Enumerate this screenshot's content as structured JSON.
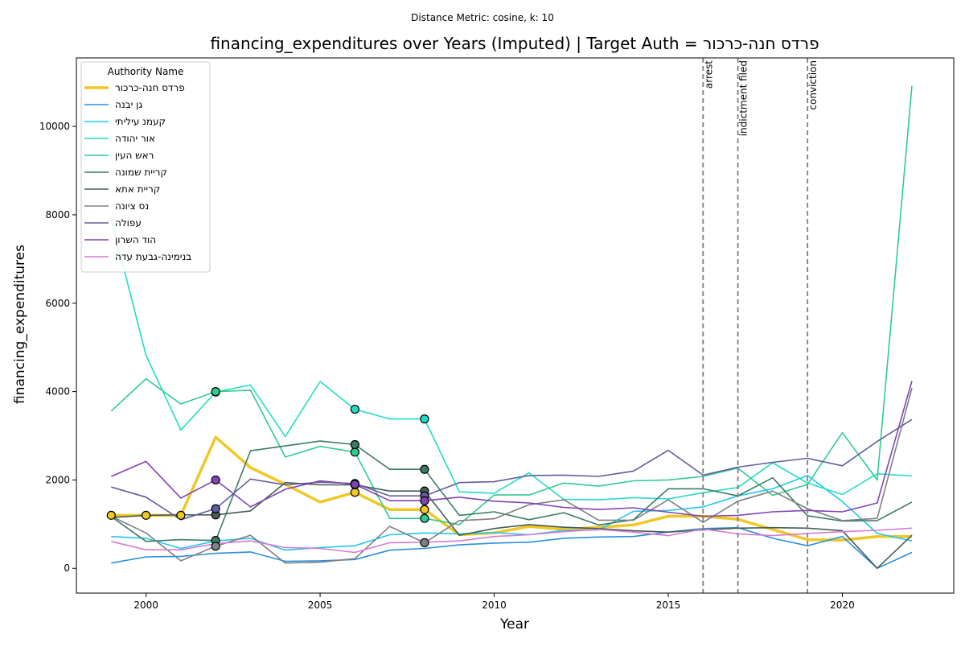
{
  "chart_data": {
    "type": "line",
    "suptitle": "Distance Metric: cosine, k: 10",
    "title": "financing_expenditures over Years (Imputed) | Target Auth = פרדס חנה-כרכור",
    "xlabel": "Year",
    "ylabel": "financing_expenditures",
    "xlim": [
      1998.0,
      2023.2
    ],
    "ylim": [
      -560,
      11550
    ],
    "x_ticks": [
      2000,
      2005,
      2010,
      2015,
      2020
    ],
    "y_ticks": [
      0,
      2000,
      4000,
      6000,
      8000,
      10000
    ],
    "grid": false,
    "legend": {
      "title": "Authority Name",
      "placement": "upper left"
    },
    "events": [
      {
        "x": 2016,
        "label": "arrest"
      },
      {
        "x": 2017,
        "label": "indictment filed"
      },
      {
        "x": 2019,
        "label": "conviction"
      }
    ],
    "x": [
      1999,
      2000,
      2001,
      2002,
      2003,
      2004,
      2005,
      2006,
      2007,
      2008,
      2009,
      2010,
      2011,
      2012,
      2013,
      2014,
      2015,
      2016,
      2017,
      2018,
      2019,
      2020,
      2021,
      2022
    ],
    "series": [
      {
        "name": "פרדס חנה-כרכור",
        "color": "#f0c825",
        "width": 3.5,
        "values": [
          1200,
          1200,
          1200,
          2970,
          2280,
          1900,
          1500,
          1720,
          1330,
          1330,
          760,
          800,
          950,
          880,
          930,
          980,
          1180,
          1180,
          1110,
          880,
          650,
          640,
          720,
          720
        ],
        "imputed": [
          1999,
          2000,
          2001,
          2006,
          2008
        ]
      },
      {
        "name": "גן יבנה",
        "color": "#2890dd",
        "width": 1.6,
        "values": [
          120,
          260,
          270,
          340,
          370,
          160,
          170,
          200,
          410,
          450,
          530,
          570,
          590,
          680,
          710,
          720,
          820,
          900,
          920,
          680,
          510,
          720,
          0,
          360
        ],
        "imputed": []
      },
      {
        "name": "קעמנ עיליתי",
        "color": "#20c8f0",
        "width": 1.6,
        "values": [
          720,
          680,
          450,
          620,
          680,
          410,
          470,
          510,
          760,
          800,
          780,
          810,
          760,
          860,
          870,
          1290,
          1310,
          1390,
          1640,
          1800,
          2100,
          1510,
          790,
          620
        ],
        "imputed": []
      },
      {
        "name": "אור יהודה",
        "color": "#22dcc4",
        "width": 1.6,
        "values": [
          7900,
          4820,
          3130,
          3990,
          4150,
          2980,
          4230,
          3600,
          3380,
          3380,
          1730,
          1700,
          2160,
          1560,
          1550,
          1600,
          1570,
          1710,
          1830,
          2390,
          1930,
          1670,
          2140,
          2090
        ],
        "imputed": [
          2002,
          2006,
          2008
        ]
      },
      {
        "name": "ראש העין",
        "color": "#2ecc8e",
        "width": 1.6,
        "values": [
          3560,
          4290,
          3720,
          4000,
          4030,
          2520,
          2760,
          2630,
          1130,
          1130,
          990,
          1660,
          1660,
          1930,
          1860,
          1980,
          2000,
          2080,
          2270,
          1650,
          1900,
          3070,
          2000,
          10920
        ],
        "imputed": [
          2002,
          2006,
          2008
        ]
      },
      {
        "name": "קריית שמונה",
        "color": "#3a7c66",
        "width": 1.6,
        "values": [
          1170,
          610,
          650,
          630,
          2660,
          2770,
          2880,
          2800,
          2240,
          2240,
          1200,
          1280,
          1100,
          1260,
          980,
          1100,
          1800,
          1800,
          1640,
          2050,
          1190,
          1070,
          1080,
          1500
        ],
        "imputed": [
          2002,
          2006,
          2008
        ]
      },
      {
        "name": "קריית אתא",
        "color": "#455e55",
        "width": 1.6,
        "values": [
          1150,
          1200,
          1210,
          1210,
          1300,
          1940,
          1890,
          1890,
          1750,
          1750,
          750,
          900,
          990,
          930,
          900,
          850,
          820,
          870,
          910,
          920,
          910,
          850,
          0,
          750
        ],
        "imputed": [
          2002,
          2006,
          2008
        ]
      },
      {
        "name": "נס ציונה",
        "color": "#808080",
        "width": 1.6,
        "values": [
          1180,
          800,
          170,
          500,
          750,
          120,
          140,
          220,
          950,
          580,
          1080,
          1120,
          1440,
          1550,
          1090,
          1090,
          1550,
          1040,
          1520,
          1750,
          1350,
          1080,
          1130,
          4080
        ],
        "imputed": [
          2002,
          2008
        ]
      },
      {
        "name": "עפולה",
        "color": "#5f5ea0",
        "width": 1.6,
        "values": [
          1840,
          1610,
          1100,
          1350,
          2020,
          1890,
          1950,
          1920,
          1640,
          1640,
          1940,
          1960,
          2100,
          2110,
          2080,
          2200,
          2670,
          2110,
          2290,
          2400,
          2490,
          2320,
          2870,
          3370
        ],
        "imputed": [
          2002,
          2006,
          2008
        ]
      },
      {
        "name": "הוד השרון",
        "color": "#8044b4",
        "width": 1.6,
        "values": [
          2080,
          2420,
          1590,
          2000,
          1390,
          1790,
          1980,
          1900,
          1530,
          1530,
          1610,
          1520,
          1480,
          1380,
          1330,
          1370,
          1270,
          1180,
          1200,
          1280,
          1310,
          1280,
          1480,
          4240
        ],
        "imputed": [
          2002,
          2006,
          2008
        ]
      },
      {
        "name": "בנימינה-גבעת עדה",
        "color": "#d77ad2",
        "width": 1.6,
        "values": [
          610,
          420,
          420,
          560,
          620,
          470,
          450,
          360,
          580,
          590,
          620,
          720,
          760,
          830,
          880,
          820,
          740,
          890,
          780,
          740,
          790,
          830,
          860,
          910
        ],
        "imputed": []
      }
    ]
  }
}
